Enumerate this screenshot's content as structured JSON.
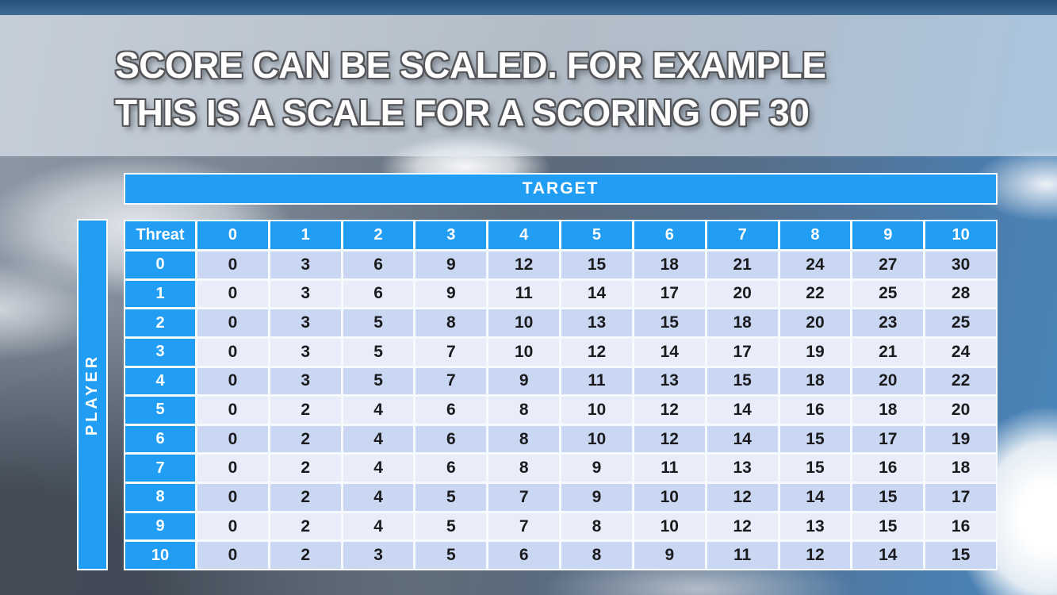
{
  "slide": {
    "title_line1": "SCORE CAN BE SCALED. FOR EXAMPLE",
    "title_line2": "THIS IS A SCALE FOR A SCORING OF 30"
  },
  "colors": {
    "accent_blue": "#219DF4",
    "row_shade_dark": "#CAD7F2",
    "row_shade_light": "#E9EDFA",
    "grid_line_white": "#F6FAFD",
    "cell_text": "#1B1B1E",
    "top_strip_blue": "#2B577F",
    "title_text": "#FFFFFF",
    "title_outline": "#55565A"
  },
  "chart_data": {
    "type": "table",
    "title": "SCORE CAN BE SCALED. FOR EXAMPLE THIS IS A SCALE FOR A SCORING OF 30",
    "x_axis_label": "TARGET",
    "y_axis_label": "PLAYER",
    "corner_label": "Threat",
    "max_score": 30,
    "columns": [
      "0",
      "1",
      "2",
      "3",
      "4",
      "5",
      "6",
      "7",
      "8",
      "9",
      "10"
    ],
    "rows": [
      {
        "header": "0",
        "values": [
          0,
          3,
          6,
          9,
          12,
          15,
          18,
          21,
          24,
          27,
          30
        ]
      },
      {
        "header": "1",
        "values": [
          0,
          3,
          6,
          9,
          11,
          14,
          17,
          20,
          22,
          25,
          28
        ]
      },
      {
        "header": "2",
        "values": [
          0,
          3,
          5,
          8,
          10,
          13,
          15,
          18,
          20,
          23,
          25
        ]
      },
      {
        "header": "3",
        "values": [
          0,
          3,
          5,
          7,
          10,
          12,
          14,
          17,
          19,
          21,
          24
        ]
      },
      {
        "header": "4",
        "values": [
          0,
          3,
          5,
          7,
          9,
          11,
          13,
          15,
          18,
          20,
          22
        ]
      },
      {
        "header": "5",
        "values": [
          0,
          2,
          4,
          6,
          8,
          10,
          12,
          14,
          16,
          18,
          20
        ]
      },
      {
        "header": "6",
        "values": [
          0,
          2,
          4,
          6,
          8,
          10,
          12,
          14,
          15,
          17,
          19
        ]
      },
      {
        "header": "7",
        "values": [
          0,
          2,
          4,
          6,
          8,
          9,
          11,
          13,
          15,
          16,
          18
        ]
      },
      {
        "header": "8",
        "values": [
          0,
          2,
          4,
          5,
          7,
          9,
          10,
          12,
          14,
          15,
          17
        ]
      },
      {
        "header": "9",
        "values": [
          0,
          2,
          4,
          5,
          7,
          8,
          10,
          12,
          13,
          15,
          16
        ]
      },
      {
        "header": "10",
        "values": [
          0,
          2,
          3,
          5,
          6,
          8,
          9,
          11,
          12,
          14,
          15
        ]
      }
    ]
  }
}
